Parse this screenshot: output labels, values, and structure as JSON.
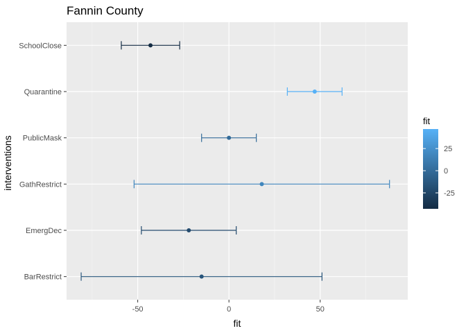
{
  "chart_data": {
    "type": "errorbar",
    "title": "Fannin County",
    "xlabel": "fit",
    "ylabel": "interventions",
    "xlim": [
      -89,
      98
    ],
    "x_ticks": [
      -50,
      0,
      50
    ],
    "x_tick_labels": [
      "-50",
      "0",
      "50"
    ],
    "x_minor_ticks": [
      -75,
      -25,
      25,
      75
    ],
    "categories": [
      "BarRestrict",
      "EmergDec",
      "GathRestrict",
      "PublicMask",
      "Quarantine",
      "SchoolClose"
    ],
    "points": [
      {
        "category": "SchoolClose",
        "fit": -43,
        "lower": -59,
        "upper": -27
      },
      {
        "category": "Quarantine",
        "fit": 47,
        "lower": 32,
        "upper": 62
      },
      {
        "category": "PublicMask",
        "fit": 0,
        "lower": -15,
        "upper": 15
      },
      {
        "category": "GathRestrict",
        "fit": 18,
        "lower": -52,
        "upper": 88
      },
      {
        "category": "EmergDec",
        "fit": -22,
        "lower": -48,
        "upper": 4
      },
      {
        "category": "BarRestrict",
        "fit": -15,
        "lower": -81,
        "upper": 51
      }
    ],
    "legend": {
      "title": "fit",
      "position": "right",
      "range": [
        -43,
        47
      ],
      "ticks": [
        -25,
        0,
        25
      ],
      "tick_labels": [
        "-25",
        "0",
        "25"
      ],
      "low_color": "#132b43",
      "high_color": "#56b1f7"
    },
    "panel_background": "#ebebeb",
    "grid": true
  }
}
